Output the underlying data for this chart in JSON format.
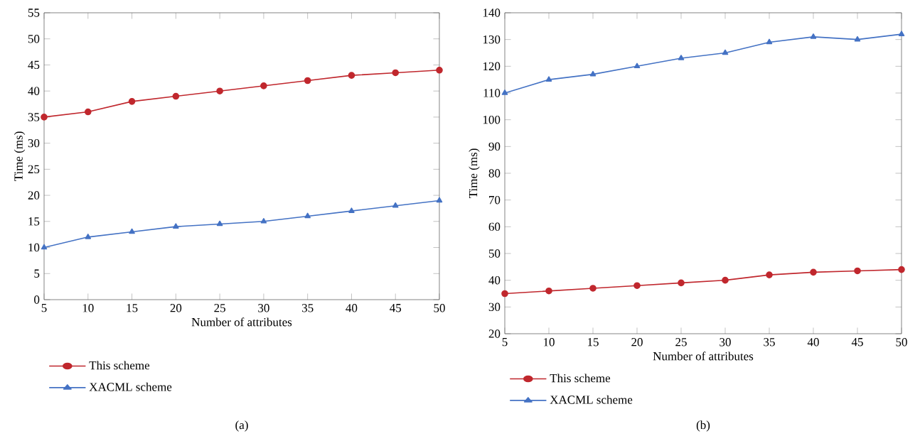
{
  "chart_data": [
    {
      "type": "line",
      "xlabel": "Number of attributes",
      "ylabel": "Time (ms)",
      "x": [
        5,
        10,
        15,
        20,
        25,
        30,
        35,
        40,
        45,
        50
      ],
      "xlim": [
        5,
        50
      ],
      "xticks": [
        5,
        10,
        15,
        20,
        25,
        30,
        35,
        40,
        45,
        50
      ],
      "ylim": [
        0,
        55
      ],
      "yticks": [
        0,
        5,
        10,
        15,
        20,
        25,
        30,
        35,
        40,
        45,
        50,
        55
      ],
      "legend": "bottom",
      "annotations": [
        "(a)"
      ],
      "series": [
        {
          "name": "This scheme",
          "color": "#c0272d",
          "marker": "circle",
          "values": [
            35,
            36,
            38,
            39,
            40,
            41,
            42,
            43,
            43.5,
            44
          ]
        },
        {
          "name": "XACML scheme",
          "color": "#4472c4",
          "marker": "triangle",
          "values": [
            10,
            12,
            13,
            14,
            14.5,
            15,
            16,
            17,
            18,
            19
          ]
        }
      ]
    },
    {
      "type": "line",
      "xlabel": "Number of attributes",
      "ylabel": "Time (ms)",
      "x": [
        5,
        10,
        15,
        20,
        25,
        30,
        35,
        40,
        45,
        50
      ],
      "xlim": [
        5,
        50
      ],
      "xticks": [
        5,
        10,
        15,
        20,
        25,
        30,
        35,
        40,
        45,
        50
      ],
      "ylim": [
        20,
        140
      ],
      "yticks": [
        20,
        30,
        40,
        50,
        60,
        70,
        80,
        90,
        100,
        110,
        120,
        130,
        140
      ],
      "legend": "bottom",
      "annotations": [
        "(b)"
      ],
      "series": [
        {
          "name": "This scheme",
          "color": "#c0272d",
          "marker": "circle",
          "values": [
            35,
            36,
            37,
            38,
            39,
            40,
            42,
            43,
            43.5,
            44
          ]
        },
        {
          "name": "XACML scheme",
          "color": "#4472c4",
          "marker": "triangle",
          "values": [
            110,
            115,
            117,
            120,
            123,
            125,
            129,
            131,
            130,
            132
          ]
        }
      ]
    }
  ]
}
